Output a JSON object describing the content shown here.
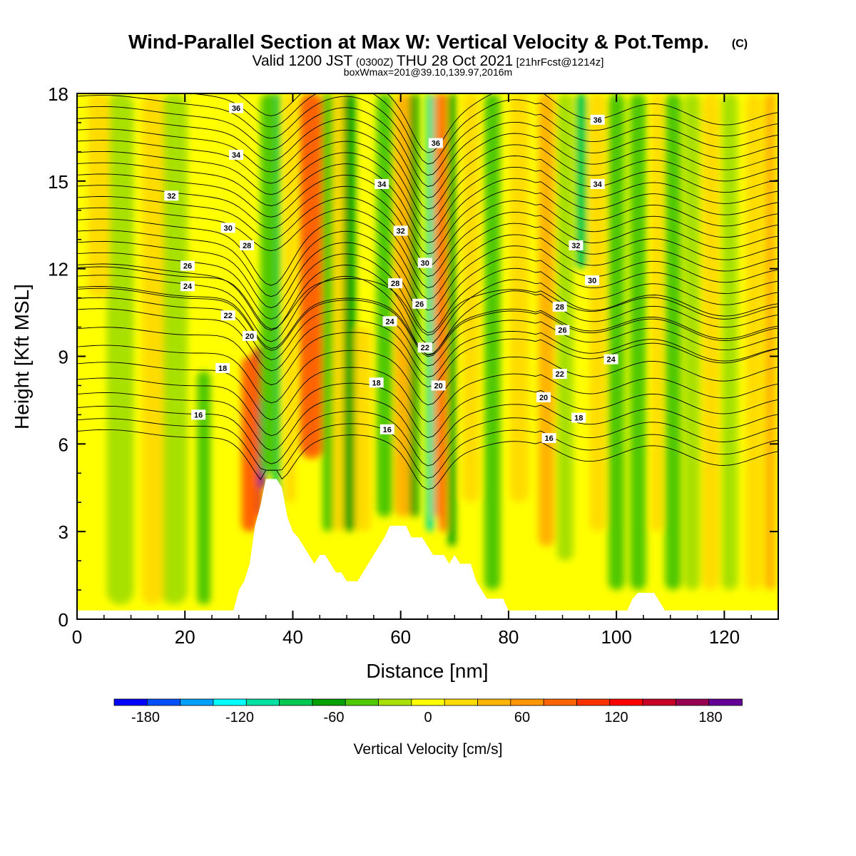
{
  "title": {
    "main": "Wind-Parallel Section at Max W: Vertical Velocity & Pot.Temp.",
    "copyright": "(C)",
    "valid_prefix": "Valid 1200 JST",
    "valid_utc": "(0300Z)",
    "valid_date": "THU 28 Oct 2021",
    "forecast": "[21hrFcst@1214z]",
    "box": "boxWmax=201@39.10,139.97,2016m"
  },
  "chart_data": {
    "type": "heatmap",
    "xlabel": "Distance [nm]",
    "ylabel": "Height [Kft MSL]",
    "xlim": [
      0,
      130
    ],
    "ylim": [
      0,
      18
    ],
    "x_ticks": [
      "0",
      "20",
      "40",
      "60",
      "80",
      "100",
      "120"
    ],
    "y_ticks": [
      "0",
      "3",
      "6",
      "9",
      "12",
      "15",
      "18"
    ],
    "x_tick_values": [
      0,
      20,
      40,
      60,
      80,
      100,
      120
    ],
    "y_tick_values": [
      0,
      3,
      6,
      9,
      12,
      15,
      18
    ],
    "colorbar": {
      "title": "Vertical Velocity [cm/s]",
      "labels": [
        "-180",
        "-120",
        "-60",
        "0",
        "60",
        "120",
        "180"
      ],
      "label_values": [
        -180,
        -120,
        -60,
        0,
        60,
        120,
        180
      ],
      "range": [
        -200,
        200
      ],
      "colors": [
        "#0000ff",
        "#0050ff",
        "#00a0ff",
        "#00ffff",
        "#00e0a0",
        "#00c850",
        "#00a000",
        "#50c800",
        "#a8e000",
        "#ffff00",
        "#ffdc00",
        "#ffb400",
        "#ff9600",
        "#ff6400",
        "#ff3200",
        "#ff0000",
        "#c80028",
        "#960050",
        "#640096"
      ]
    },
    "terrain": {
      "x": [
        0,
        29,
        30,
        31,
        32,
        33,
        34,
        35,
        37,
        38,
        39,
        40,
        41,
        42,
        43,
        44,
        45,
        46,
        47,
        48,
        49,
        50,
        51,
        52,
        53,
        54,
        55,
        56,
        57,
        58,
        59,
        61,
        62,
        63,
        64,
        65,
        66,
        67,
        68,
        69,
        70,
        71,
        72,
        73,
        74,
        75,
        76,
        77,
        78,
        79,
        80,
        81,
        82,
        83,
        102,
        103,
        104,
        105,
        107,
        108,
        109,
        110,
        130
      ],
      "y": [
        0.3,
        0.3,
        1.0,
        1.3,
        1.9,
        3.2,
        3.9,
        4.8,
        4.8,
        4.5,
        3.5,
        3.0,
        2.8,
        2.5,
        2.2,
        1.9,
        2.2,
        2.2,
        1.9,
        1.6,
        1.6,
        1.3,
        1.3,
        1.3,
        1.6,
        1.9,
        2.2,
        2.5,
        2.8,
        3.2,
        3.2,
        3.2,
        2.8,
        2.8,
        2.8,
        2.5,
        2.2,
        2.2,
        2.2,
        1.9,
        2.2,
        1.9,
        1.9,
        1.9,
        1.3,
        1.0,
        0.7,
        0.7,
        0.7,
        0.7,
        0.3,
        0.3,
        0.3,
        0.3,
        0.3,
        0.7,
        0.9,
        0.9,
        0.9,
        0.6,
        0.3,
        0.3,
        0.3
      ]
    },
    "vertical_velocity_bands": [
      {
        "x": 33.5,
        "width": 1.6,
        "y0": 3.5,
        "y1": 9.3,
        "value": 150
      },
      {
        "x": 34.3,
        "width": 1.2,
        "y0": 4.5,
        "y1": 7.5,
        "value": 180
      },
      {
        "x": 32.0,
        "width": 3.0,
        "y0": 3.0,
        "y1": 9.0,
        "value": 80
      },
      {
        "x": 37.0,
        "width": 1.4,
        "y0": 3.5,
        "y1": 18,
        "value": -80
      },
      {
        "x": 35.5,
        "width": 3.0,
        "y0": 5.0,
        "y1": 18,
        "value": -50
      },
      {
        "x": 39.5,
        "width": 2.0,
        "y0": 4.0,
        "y1": 18,
        "value": 30
      },
      {
        "x": 43.5,
        "width": 4.5,
        "y0": 5.5,
        "y1": 18,
        "value": 75
      },
      {
        "x": 46.5,
        "width": 2.0,
        "y0": 3.0,
        "y1": 18,
        "value": -45
      },
      {
        "x": 48.5,
        "width": 2.0,
        "y0": 3.0,
        "y1": 18,
        "value": 20
      },
      {
        "x": 50.5,
        "width": 2.2,
        "y0": 3.0,
        "y1": 18,
        "value": -70
      },
      {
        "x": 53.0,
        "width": 3.0,
        "y0": 3.0,
        "y1": 10,
        "value": 20
      },
      {
        "x": 57.0,
        "width": 3.0,
        "y0": 3.5,
        "y1": 18,
        "value": -35
      },
      {
        "x": 60.5,
        "width": 3.0,
        "y0": 3.5,
        "y1": 18,
        "value": 50
      },
      {
        "x": 62.5,
        "width": 1.6,
        "y0": 3.5,
        "y1": 18,
        "value": -60
      },
      {
        "x": 65.5,
        "width": 1.4,
        "y0": 3.0,
        "y1": 18,
        "value": -110
      },
      {
        "x": 66.8,
        "width": 1.2,
        "y0": 3.5,
        "y1": 18,
        "value": 60
      },
      {
        "x": 67.8,
        "width": 1.2,
        "y0": 3.0,
        "y1": 18,
        "value": 90
      },
      {
        "x": 69.5,
        "width": 1.4,
        "y0": 2.5,
        "y1": 18,
        "value": -60
      },
      {
        "x": 73.0,
        "width": 3.0,
        "y0": 4.0,
        "y1": 18,
        "value": 15
      },
      {
        "x": 77.0,
        "width": 3.0,
        "y0": 1.0,
        "y1": 18,
        "value": -45
      },
      {
        "x": 82.0,
        "width": 3.5,
        "y0": 4.0,
        "y1": 18,
        "value": 15
      },
      {
        "x": 87.0,
        "width": 3.0,
        "y0": 2.5,
        "y1": 18,
        "value": 40
      },
      {
        "x": 90.5,
        "width": 3.0,
        "y0": 2.0,
        "y1": 18,
        "value": -30
      },
      {
        "x": 93.5,
        "width": 2.0,
        "y0": 12,
        "y1": 18,
        "value": -80
      },
      {
        "x": 96.5,
        "width": 3.0,
        "y0": 3.0,
        "y1": 18,
        "value": 25
      },
      {
        "x": 100.0,
        "width": 3.0,
        "y0": 1.0,
        "y1": 18,
        "value": -35
      },
      {
        "x": 104.0,
        "width": 3.0,
        "y0": 1.0,
        "y1": 18,
        "value": -45
      },
      {
        "x": 107.5,
        "width": 2.0,
        "y0": 3.0,
        "y1": 18,
        "value": 25
      },
      {
        "x": 110.5,
        "width": 3.0,
        "y0": 1.0,
        "y1": 18,
        "value": -35
      },
      {
        "x": 114.0,
        "width": 3.0,
        "y0": 1.0,
        "y1": 18,
        "value": -30
      },
      {
        "x": 117.5,
        "width": 3.0,
        "y0": 1.0,
        "y1": 18,
        "value": 20
      },
      {
        "x": 121.0,
        "width": 3.0,
        "y0": 1.0,
        "y1": 18,
        "value": -30
      },
      {
        "x": 125.5,
        "width": 3.0,
        "y0": 1.0,
        "y1": 18,
        "value": 25
      },
      {
        "x": 128.5,
        "width": 2.0,
        "y0": 1.0,
        "y1": 18,
        "value": 45
      },
      {
        "x": 8.0,
        "width": 5.0,
        "y0": 0.5,
        "y1": 18,
        "value": -25
      },
      {
        "x": 18.0,
        "width": 5.0,
        "y0": 0.5,
        "y1": 18,
        "value": -30
      },
      {
        "x": 23.5,
        "width": 2.5,
        "y0": 0.5,
        "y1": 8.5,
        "value": -50
      },
      {
        "x": 4.0,
        "width": 4.0,
        "y0": 11,
        "y1": 18,
        "value": 15
      },
      {
        "x": 14.0,
        "width": 4.0,
        "y0": 0.5,
        "y1": 18,
        "value": 15
      }
    ],
    "potential_temperature": {
      "levels": [
        16,
        18,
        20,
        22,
        24,
        26,
        28,
        30,
        32,
        34,
        36
      ],
      "labels": [
        {
          "text": "36",
          "x": 29.5,
          "y": 17.5
        },
        {
          "text": "36",
          "x": 66.5,
          "y": 16.3
        },
        {
          "text": "36",
          "x": 96.5,
          "y": 17.1
        },
        {
          "text": "34",
          "x": 29.5,
          "y": 15.9
        },
        {
          "text": "34",
          "x": 56.5,
          "y": 14.9
        },
        {
          "text": "34",
          "x": 96.5,
          "y": 14.9
        },
        {
          "text": "32",
          "x": 17.5,
          "y": 14.5
        },
        {
          "text": "32",
          "x": 60.0,
          "y": 13.3
        },
        {
          "text": "32",
          "x": 92.5,
          "y": 12.8
        },
        {
          "text": "30",
          "x": 28.0,
          "y": 13.4
        },
        {
          "text": "30",
          "x": 64.5,
          "y": 12.2
        },
        {
          "text": "30",
          "x": 95.5,
          "y": 11.6
        },
        {
          "text": "28",
          "x": 31.5,
          "y": 12.8
        },
        {
          "text": "28",
          "x": 59.0,
          "y": 11.5
        },
        {
          "text": "28",
          "x": 89.5,
          "y": 10.7
        },
        {
          "text": "26",
          "x": 20.5,
          "y": 12.1
        },
        {
          "text": "26",
          "x": 63.5,
          "y": 10.8
        },
        {
          "text": "26",
          "x": 90.0,
          "y": 9.9
        },
        {
          "text": "24",
          "x": 20.5,
          "y": 11.4
        },
        {
          "text": "24",
          "x": 58.0,
          "y": 10.2
        },
        {
          "text": "24",
          "x": 99.0,
          "y": 8.9
        },
        {
          "text": "22",
          "x": 28.0,
          "y": 10.4
        },
        {
          "text": "22",
          "x": 64.5,
          "y": 9.3
        },
        {
          "text": "22",
          "x": 89.5,
          "y": 8.4
        },
        {
          "text": "20",
          "x": 32.0,
          "y": 9.7
        },
        {
          "text": "20",
          "x": 67.0,
          "y": 8.0
        },
        {
          "text": "20",
          "x": 86.5,
          "y": 7.6
        },
        {
          "text": "18",
          "x": 27.0,
          "y": 8.6
        },
        {
          "text": "18",
          "x": 55.5,
          "y": 8.1
        },
        {
          "text": "18",
          "x": 93.0,
          "y": 6.9
        },
        {
          "text": "16",
          "x": 22.5,
          "y": 7.0
        },
        {
          "text": "16",
          "x": 57.5,
          "y": 6.5
        },
        {
          "text": "16",
          "x": 87.5,
          "y": 6.2
        }
      ]
    }
  }
}
